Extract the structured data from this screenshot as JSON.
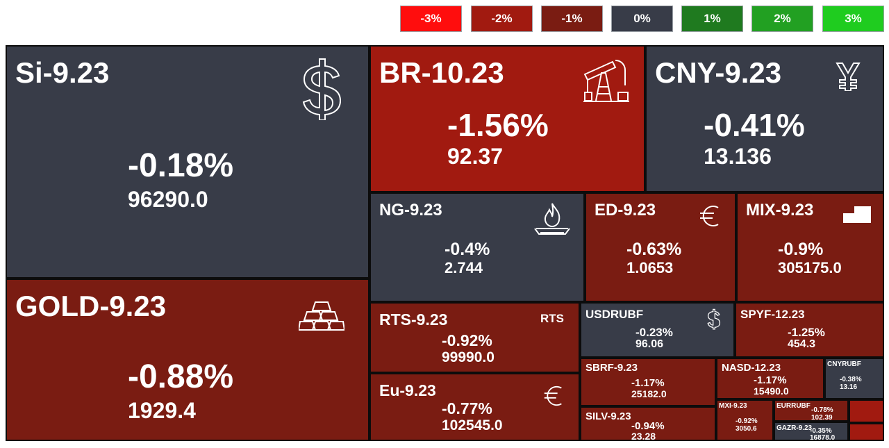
{
  "legend": [
    {
      "label": "-3%",
      "color": "#ff0d0d"
    },
    {
      "label": "-2%",
      "color": "#a11a10"
    },
    {
      "label": "-1%",
      "color": "#7a1c12"
    },
    {
      "label": "0%",
      "color": "#383c48"
    },
    {
      "label": "1%",
      "color": "#1f7a1f"
    },
    {
      "label": "2%",
      "color": "#22a022"
    },
    {
      "label": "3%",
      "color": "#1fcc1f"
    }
  ],
  "tiles": {
    "si": {
      "ticker": "Si-9.23",
      "change": "-0.18%",
      "price": "96290.0",
      "icon": "dollar-icon"
    },
    "br": {
      "ticker": "BR-10.23",
      "change": "-1.56%",
      "price": "92.37",
      "icon": "oil-pump-icon"
    },
    "cny": {
      "ticker": "CNY-9.23",
      "change": "-0.41%",
      "price": "13.136",
      "icon": "yuan-icon"
    },
    "gold": {
      "ticker": "GOLD-9.23",
      "change": "-0.88%",
      "price": "1929.4",
      "icon": "gold-bars-icon"
    },
    "ng": {
      "ticker": "NG-9.23",
      "change": "-0.4%",
      "price": "2.744",
      "icon": "gas-flame-icon"
    },
    "ed": {
      "ticker": "ED-9.23",
      "change": "-0.63%",
      "price": "1.0653",
      "icon": "euro-icon"
    },
    "mix": {
      "ticker": "MIX-9.23",
      "change": "-0.9%",
      "price": "305175.0",
      "icon": "bar-steps-icon"
    },
    "rts": {
      "ticker": "RTS-9.23",
      "change": "-0.92%",
      "price": "99990.0",
      "badge": "RTS"
    },
    "eu": {
      "ticker": "Eu-9.23",
      "change": "-0.77%",
      "price": "102545.0",
      "icon": "euro-icon"
    },
    "usdrubf": {
      "ticker": "USDRUBF",
      "change": "-0.23%",
      "price": "96.06",
      "icon": "dollar-icon"
    },
    "spyf": {
      "ticker": "SPYF-12.23",
      "change": "-1.25%",
      "price": "454.3"
    },
    "sbrf": {
      "ticker": "SBRF-9.23",
      "change": "-1.17%",
      "price": "25182.0"
    },
    "nasd": {
      "ticker": "NASD-12.23",
      "change": "-1.17%",
      "price": "15490.0"
    },
    "cnyrubf": {
      "ticker": "CNYRUBF",
      "change": "-0.38%",
      "price": "13.16"
    },
    "silv": {
      "ticker": "SILV-9.23",
      "change": "-0.94%",
      "price": "23.28"
    },
    "mxi": {
      "ticker": "MXI-9.23",
      "change": "-0.92%",
      "price": "3050.6"
    },
    "eurrubf": {
      "ticker": "EURRUBF",
      "change": "-0.78%",
      "price": "102.39"
    },
    "gazr": {
      "ticker": "GAZR-9.23",
      "change": "-0.35%",
      "price": "16878.0"
    }
  }
}
